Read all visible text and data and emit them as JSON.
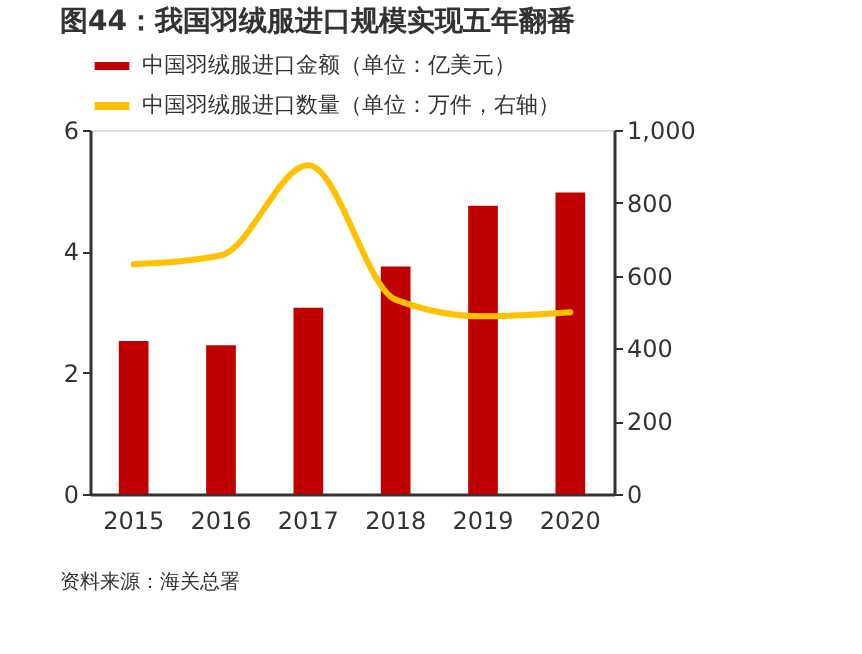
{
  "chart_data": {
    "type": "bar",
    "title": "图44：我国羽绒服进口规模实现五年翻番",
    "categories": [
      "2015",
      "2016",
      "2017",
      "2018",
      "2019",
      "2020"
    ],
    "series": [
      {
        "name": "中国羽绒服进口金额（单位：亿美元）",
        "color": "#c00000",
        "values": [
          2.52,
          2.45,
          3.07,
          3.75,
          4.75,
          4.97
        ]
      },
      {
        "name": "中国羽绒服进口数量（单位：万件，右轴）",
        "color": "#ffc000",
        "type": "line",
        "axis": "y2",
        "values": [
          631,
          656,
          903,
          534,
          488,
          499
        ]
      }
    ],
    "ylim": [
      0,
      6
    ],
    "yticks": [
      0,
      2,
      4,
      6
    ],
    "y2lim": [
      0,
      1000
    ],
    "y2ticks": [
      0,
      200,
      400,
      600,
      800,
      {
        "value": 1000,
        "label": "1,000"
      }
    ],
    "grid": false,
    "legend": "top",
    "marker": "none",
    "line_style": "solid",
    "annotations": [
      "资料来源：海关总署"
    ]
  }
}
